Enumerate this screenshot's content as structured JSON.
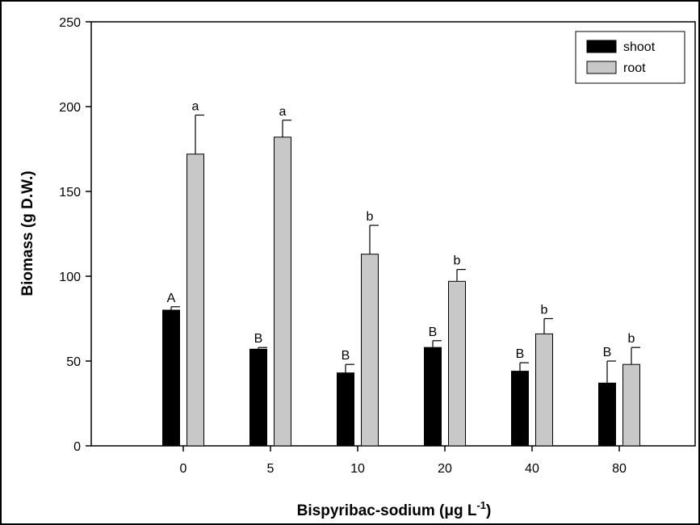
{
  "chart_data": {
    "type": "bar",
    "xlabel_main": "Bispyribac-sodium (μg L",
    "xlabel_sup": "-1",
    "xlabel_end": ")",
    "ylabel": "Biomass (g D.W.)",
    "ylim": [
      0,
      250
    ],
    "yticks": [
      0,
      50,
      100,
      150,
      200,
      250
    ],
    "categories": [
      "0",
      "5",
      "10",
      "20",
      "40",
      "80"
    ],
    "legend_position": "top-right",
    "series": [
      {
        "name": "shoot",
        "color": "#000000",
        "values": [
          80,
          57,
          43,
          58,
          44,
          37
        ],
        "errors": [
          2,
          1,
          5,
          4,
          5,
          13
        ],
        "letters": [
          "A",
          "B",
          "B",
          "B",
          "B",
          "B"
        ]
      },
      {
        "name": "root",
        "color": "#c8c8c8",
        "values": [
          172,
          182,
          113,
          97,
          66,
          48
        ],
        "errors": [
          23,
          10,
          17,
          7,
          9,
          10
        ],
        "letters": [
          "a",
          "a",
          "b",
          "b",
          "b",
          "b"
        ]
      }
    ]
  }
}
